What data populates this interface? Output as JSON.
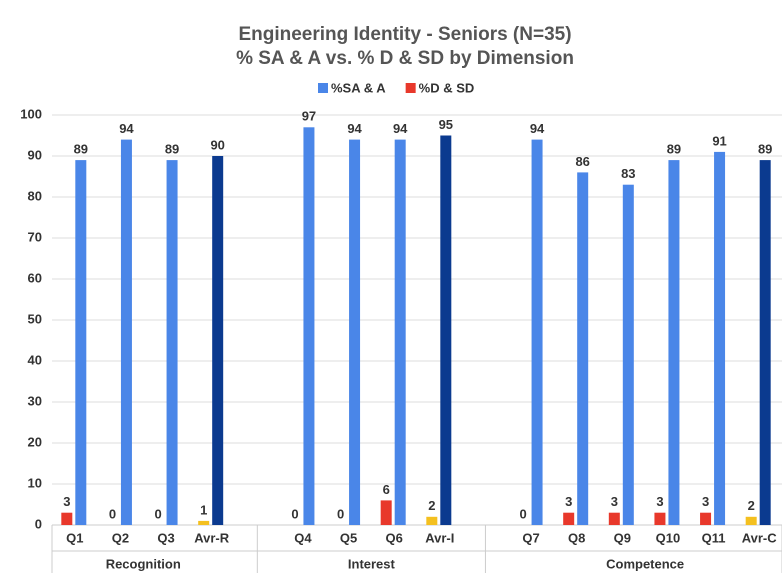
{
  "chart_data": {
    "type": "bar",
    "title": [
      "Engineering Identity - Seniors (N=35)",
      "% SA & A vs. % D & SD by Dimension"
    ],
    "categories": [
      "Q1",
      "Q2",
      "Q3",
      "Avr-R",
      null,
      "Q4",
      "Q5",
      "Q6",
      "Avr-I",
      null,
      "Q7",
      "Q8",
      "Q9",
      "Q10",
      "Q11",
      "Avr-C"
    ],
    "groups": [
      "Recognition",
      "Interest",
      "Competence"
    ],
    "series": [
      {
        "name": "%SA & A",
        "color": "#4a86e8",
        "colors": [
          "#4a86e8",
          "#4a86e8",
          "#4a86e8",
          "#0b3a8f",
          null,
          "#4a86e8",
          "#4a86e8",
          "#4a86e8",
          "#0b3a8f",
          null,
          "#4a86e8",
          "#4a86e8",
          "#4a86e8",
          "#4a86e8",
          "#4a86e8",
          "#0b3a8f"
        ],
        "values": [
          89,
          94,
          89,
          90,
          null,
          97,
          94,
          94,
          95,
          null,
          94,
          86,
          83,
          89,
          91,
          89
        ]
      },
      {
        "name": "%D & SD",
        "color": "#e8382b",
        "colors": [
          "#e8382b",
          "#e8382b",
          "#e8382b",
          "#f4c01f",
          null,
          "#e8382b",
          "#e8382b",
          "#e8382b",
          "#f4c01f",
          null,
          "#e8382b",
          "#e8382b",
          "#e8382b",
          "#e8382b",
          "#e8382b",
          "#f4c01f"
        ],
        "values": [
          3,
          0,
          0,
          1,
          null,
          0,
          0,
          6,
          2,
          null,
          0,
          3,
          3,
          3,
          3,
          2
        ]
      }
    ],
    "ylim": [
      0,
      100
    ],
    "yticks": [
      0,
      10,
      20,
      30,
      40,
      50,
      60,
      70,
      80,
      90,
      100
    ],
    "grid": true
  }
}
